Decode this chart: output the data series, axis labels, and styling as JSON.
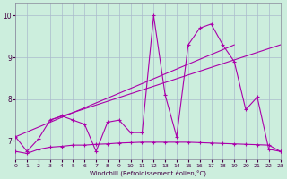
{
  "xlabel": "Windchill (Refroidissement éolien,°C)",
  "bg_color": "#cceedd",
  "line_color": "#aa00aa",
  "grid_color": "#aabbcc",
  "xmin": 0,
  "xmax": 23,
  "ymin": 6.55,
  "ymax": 10.3,
  "yticks": [
    7,
    8,
    9,
    10
  ],
  "xticks": [
    0,
    1,
    2,
    3,
    4,
    5,
    6,
    7,
    8,
    9,
    10,
    11,
    12,
    13,
    14,
    15,
    16,
    17,
    18,
    19,
    20,
    21,
    22,
    23
  ],
  "line_zigzag_x": [
    0,
    1,
    2,
    3,
    4,
    5,
    6,
    7,
    8,
    9,
    10,
    11,
    12,
    13,
    14,
    15,
    16,
    17,
    18,
    19,
    20,
    21,
    22,
    23
  ],
  "line_zigzag_y": [
    7.1,
    6.75,
    7.05,
    7.5,
    7.6,
    7.5,
    7.4,
    6.75,
    7.45,
    7.5,
    7.2,
    7.2,
    10.0,
    8.1,
    7.1,
    9.3,
    9.7,
    9.8,
    9.3,
    8.9,
    7.75,
    8.05,
    6.8,
    6.75
  ],
  "line_flat_x": [
    0,
    1,
    2,
    3,
    4,
    5,
    6,
    7,
    8,
    9,
    10,
    11,
    12,
    13,
    14,
    15,
    16,
    17,
    18,
    19,
    20,
    21,
    22,
    23
  ],
  "line_flat_y": [
    6.75,
    6.7,
    6.8,
    6.85,
    6.87,
    6.9,
    6.9,
    6.92,
    6.93,
    6.95,
    6.96,
    6.97,
    6.97,
    6.97,
    6.97,
    6.97,
    6.96,
    6.95,
    6.94,
    6.93,
    6.92,
    6.91,
    6.9,
    6.75
  ],
  "line_trend1_x": [
    0,
    19
  ],
  "line_trend1_y": [
    7.1,
    9.3
  ],
  "line_trend2_x": [
    3,
    23
  ],
  "line_trend2_y": [
    7.5,
    9.3
  ]
}
